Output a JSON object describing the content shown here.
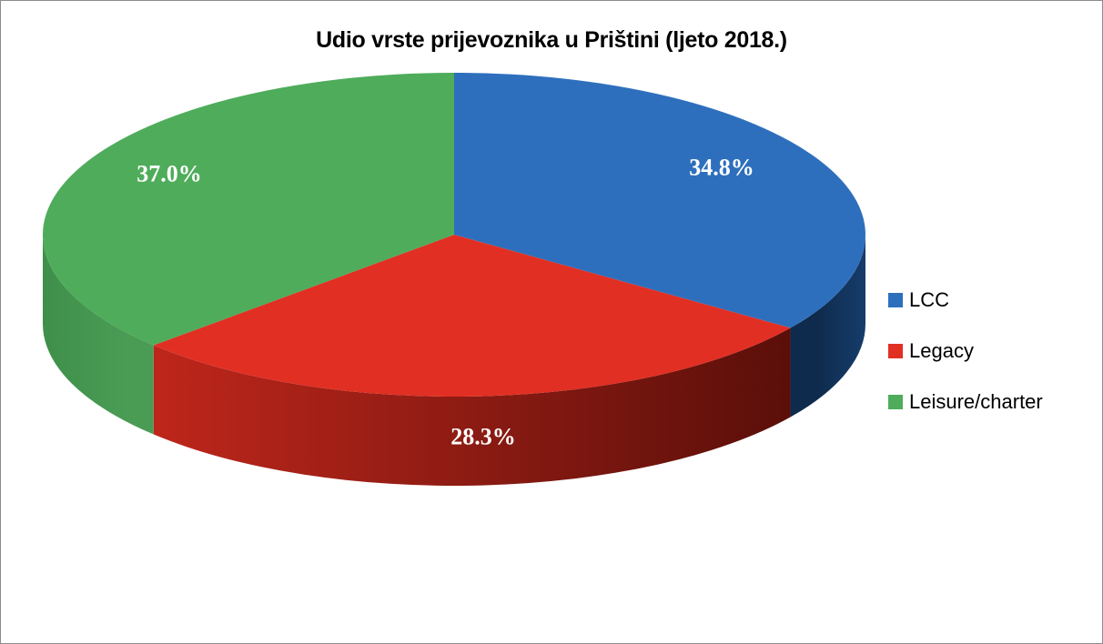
{
  "chart_data": {
    "type": "pie",
    "title": "Udio vrste prijevoznika u Prištini (ljeto 2018.)",
    "categories": [
      "LCC",
      "Legacy",
      "Leisure/charter"
    ],
    "values": [
      34.8,
      28.3,
      37.0
    ],
    "labels": [
      "34.8%",
      "28.3%",
      "37.0%"
    ],
    "colors": [
      "#2e6fbd",
      "#e12f23",
      "#4fac5b"
    ],
    "side_colors": [
      "#0f2d52",
      "#7a1510",
      "#3a8a45"
    ],
    "style": "3d",
    "legend_position": "right"
  }
}
